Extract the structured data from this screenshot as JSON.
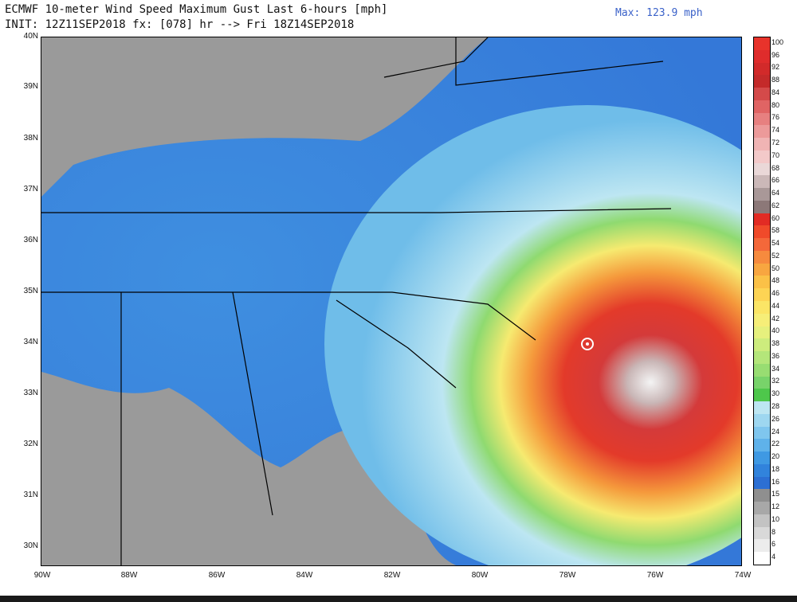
{
  "header": {
    "title": "ECMWF 10-meter Wind Speed Maximum Gust Last 6-hours [mph]",
    "init": "INIT: 12Z11SEP2018 fx: [078] hr --> Fri 18Z14SEP2018",
    "max": "Max: 123.9 mph"
  },
  "axes": {
    "lat_labels": [
      "40N",
      "39N",
      "38N",
      "37N",
      "36N",
      "35N",
      "34N",
      "33N",
      "32N",
      "31N",
      "30N"
    ],
    "lon_labels": [
      "90W",
      "88W",
      "86W",
      "84W",
      "82W",
      "80W",
      "78W",
      "76W",
      "74W"
    ]
  },
  "legend": {
    "levels": [
      "100",
      "96",
      "92",
      "88",
      "84",
      "80",
      "76",
      "74",
      "72",
      "70",
      "68",
      "66",
      "64",
      "62",
      "60",
      "58",
      "54",
      "52",
      "50",
      "48",
      "46",
      "44",
      "42",
      "40",
      "38",
      "36",
      "34",
      "32",
      "30",
      "28",
      "26",
      "24",
      "22",
      "20",
      "18",
      "16",
      "15",
      "12",
      "10",
      "8",
      "6",
      "4"
    ],
    "colors": [
      "#e8332b",
      "#df2c2c",
      "#d22a2a",
      "#c42a2a",
      "#d44a4a",
      "#e06464",
      "#e78080",
      "#ec9a9a",
      "#f0b4b4",
      "#f3c9c9",
      "#ead8d8",
      "#cbb8b8",
      "#a99898",
      "#8c7878",
      "#e22b24",
      "#f04a2a",
      "#f4683a",
      "#f68a3e",
      "#f8a640",
      "#fbc147",
      "#fdd454",
      "#fbe566",
      "#f6ee78",
      "#e6f07d",
      "#cdec7d",
      "#b4e67a",
      "#98dd72",
      "#78d36a",
      "#4ec74b",
      "#bde6f2",
      "#9ed7f0",
      "#7fc6ee",
      "#5fb2ea",
      "#3f99e3",
      "#3183dc",
      "#2c6fd3",
      "#8f8f8f",
      "#a8a8a8",
      "#c3c3c3",
      "#d9d9d9",
      "#ececec",
      "#ffffff"
    ]
  },
  "map_labels": {
    "eye_marker": "storm-center"
  }
}
